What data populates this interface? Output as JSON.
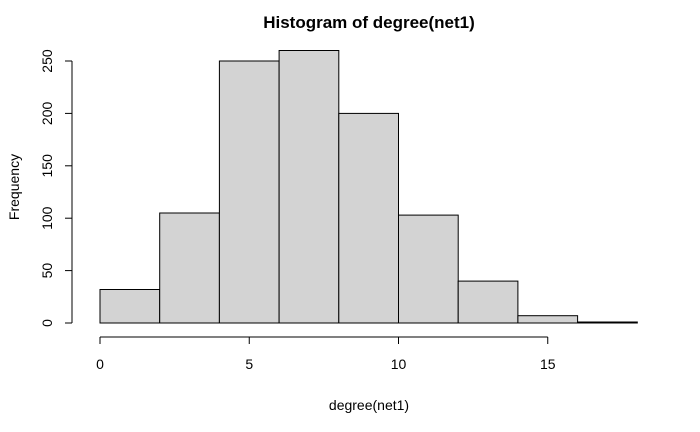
{
  "chart_data": {
    "type": "bar",
    "title": "Histogram of degree(net1)",
    "xlabel": "degree(net1)",
    "ylabel": "Frequency",
    "bins": [
      {
        "x0": 0,
        "x1": 2,
        "count": 32
      },
      {
        "x0": 2,
        "x1": 4,
        "count": 105
      },
      {
        "x0": 4,
        "x1": 6,
        "count": 250
      },
      {
        "x0": 6,
        "x1": 8,
        "count": 260
      },
      {
        "x0": 8,
        "x1": 10,
        "count": 200
      },
      {
        "x0": 10,
        "x1": 12,
        "count": 103
      },
      {
        "x0": 12,
        "x1": 14,
        "count": 40
      },
      {
        "x0": 14,
        "x1": 16,
        "count": 7
      },
      {
        "x0": 16,
        "x1": 18,
        "count": 1
      }
    ],
    "xticks": [
      0,
      5,
      10,
      15
    ],
    "yticks": [
      0,
      50,
      100,
      150,
      200,
      250
    ],
    "xlim": [
      0,
      18
    ],
    "ylim": [
      0,
      260
    ],
    "bar_color": "#D3D3D3",
    "edge_color": "#000000",
    "grid": false
  }
}
